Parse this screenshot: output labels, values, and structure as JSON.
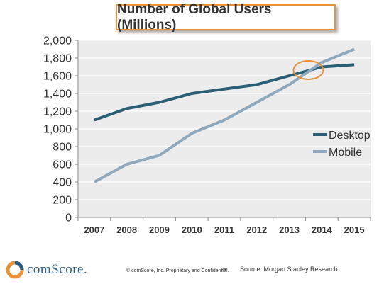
{
  "chart_data": {
    "type": "line",
    "title": "Number of Global Users (Millions)",
    "categories": [
      "2007",
      "2008",
      "2009",
      "2010",
      "2011",
      "2012",
      "2013",
      "2014",
      "2015"
    ],
    "series": [
      {
        "name": "Desktop",
        "color": "#2b5f75",
        "values": [
          1100,
          1230,
          1300,
          1400,
          1450,
          1500,
          1600,
          1700,
          1725
        ]
      },
      {
        "name": "Mobile",
        "color": "#8ea8bd",
        "values": [
          400,
          600,
          700,
          950,
          1100,
          1300,
          1500,
          1750,
          1900
        ]
      }
    ],
    "ylim": [
      0,
      2000
    ],
    "yticks": [
      "0",
      "200",
      "400",
      "600",
      "800",
      "1,000",
      "1,200",
      "1,400",
      "1,600",
      "1,800",
      "2,000"
    ],
    "grid": true,
    "legend": "right",
    "highlight": {
      "label": "crossover",
      "x_between": [
        "2013",
        "2014"
      ],
      "y": 1680,
      "color": "#e8923a"
    },
    "plot_background": "#ececec",
    "axis_color": "#888888"
  },
  "footer": {
    "brand": "comScore.",
    "copyright": "© comScore, Inc.  Proprietary and Confidential.",
    "page_number": "24",
    "source": "Source: Morgan Stanley Research"
  }
}
